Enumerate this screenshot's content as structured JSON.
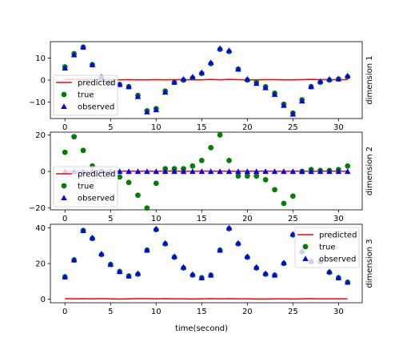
{
  "figure": {
    "xlabel": "time(second)"
  },
  "chart_data": [
    {
      "type": "scatter",
      "side_label": "dimension 1",
      "x": [
        0,
        1,
        2,
        3,
        4,
        5,
        6,
        7,
        8,
        9,
        10,
        11,
        12,
        13,
        14,
        15,
        16,
        17,
        18,
        19,
        20,
        21,
        22,
        23,
        24,
        25,
        26,
        27,
        28,
        29,
        30,
        31
      ],
      "xlim": [
        -1.6,
        32.6
      ],
      "ylim": [
        -17.5,
        17.5
      ],
      "xticks": [
        0,
        5,
        10,
        15,
        20,
        25,
        30
      ],
      "yticks": [
        10,
        0,
        -10
      ],
      "legend_position": "lower-left",
      "series": [
        {
          "name": "predicted",
          "kind": "line",
          "color": "#ff0000",
          "values": [
            0.3,
            0.2,
            0.3,
            0.2,
            0.3,
            0.2,
            0.1,
            0.2,
            0.1,
            0.1,
            0.2,
            0.1,
            0.2,
            0.2,
            0.1,
            0.1,
            0.3,
            0.1,
            0.3,
            0.2,
            0.1,
            0.1,
            0.2,
            0.2,
            0.1,
            0.1,
            0.2,
            0.3,
            0.2,
            0.2,
            0.2,
            0.2
          ]
        },
        {
          "name": "true",
          "kind": "circle",
          "color": "#008000",
          "values": [
            6,
            12,
            15,
            7,
            1,
            -1,
            -2,
            -3,
            -7,
            -14,
            -13,
            -5,
            -1,
            0,
            1,
            3,
            7.5,
            14,
            13,
            5,
            0,
            -1,
            -3,
            -6,
            -11,
            -15,
            -9,
            -3,
            -1,
            0,
            0.5,
            1.5
          ]
        },
        {
          "name": "observed",
          "kind": "triangle",
          "color": "#0000ff",
          "values": [
            5.5,
            11.5,
            15,
            7,
            1.5,
            -1.5,
            -2,
            -3,
            -7.5,
            -14.5,
            -13.5,
            -5.5,
            -1,
            0.5,
            1.5,
            3.5,
            8,
            14.5,
            13.5,
            5,
            0.5,
            -1.5,
            -3.5,
            -6.5,
            -11.5,
            -15.5,
            -9.5,
            -3,
            -0.5,
            0.5,
            0.5,
            2
          ]
        }
      ]
    },
    {
      "type": "scatter",
      "side_label": "dimension 2",
      "x": [
        0,
        1,
        2,
        3,
        4,
        5,
        6,
        7,
        8,
        9,
        10,
        11,
        12,
        13,
        14,
        15,
        16,
        17,
        18,
        19,
        20,
        21,
        22,
        23,
        24,
        25,
        26,
        27,
        28,
        29,
        30,
        31
      ],
      "xlim": [
        -1.6,
        32.6
      ],
      "ylim": [
        -21,
        21.5
      ],
      "xticks": [
        0,
        5,
        10,
        15,
        20,
        25,
        30
      ],
      "yticks": [
        20,
        0,
        -20
      ],
      "legend_position": "lower-left",
      "series": [
        {
          "name": "predicted",
          "kind": "line",
          "color": "#ff0000",
          "values": [
            0.2,
            0.1,
            0.2,
            0.1,
            0.1,
            0.2,
            0.1,
            0.2,
            0.1,
            0.2,
            0.1,
            0.2,
            0.2,
            0.1,
            0.1,
            0.2,
            0.1,
            0.2,
            0.1,
            0.1,
            0.2,
            0.1,
            0.2,
            0.1,
            0.1,
            0.2,
            0.1,
            0.1,
            0.1,
            0.2,
            0.1,
            0.1
          ]
        },
        {
          "name": "true",
          "kind": "circle",
          "color": "#008000",
          "values": [
            10.5,
            19,
            11.5,
            3,
            0,
            -1,
            -3,
            -6,
            -13,
            -20,
            -6.5,
            1.5,
            1.5,
            1.5,
            3,
            6,
            13,
            20,
            6,
            -2.5,
            -2.5,
            -2.5,
            -4.5,
            -10,
            -17.5,
            -13.5,
            0,
            1,
            0.5,
            0.5,
            1,
            3
          ]
        },
        {
          "name": "observed",
          "kind": "triangle",
          "color": "#0000ff",
          "values": [
            0,
            0,
            0,
            0,
            0,
            0,
            0,
            0,
            0,
            0,
            0,
            0,
            0,
            0,
            0,
            0,
            0,
            0,
            0,
            0,
            0,
            0,
            0,
            0,
            0,
            0,
            0,
            0,
            0,
            0,
            0,
            0
          ]
        }
      ]
    },
    {
      "type": "scatter",
      "side_label": "dimension 3",
      "x": [
        0,
        1,
        2,
        3,
        4,
        5,
        6,
        7,
        8,
        9,
        10,
        11,
        12,
        13,
        14,
        15,
        16,
        17,
        18,
        19,
        20,
        21,
        22,
        23,
        24,
        25,
        26,
        27,
        28,
        29,
        30,
        31
      ],
      "xlim": [
        -1.6,
        32.6
      ],
      "ylim": [
        -2,
        42
      ],
      "xticks": [
        0,
        5,
        10,
        15,
        20,
        25,
        30
      ],
      "yticks": [
        40,
        20,
        0
      ],
      "legend_position": "upper-right",
      "series": [
        {
          "name": "predicted",
          "kind": "line",
          "color": "#ff0000",
          "values": [
            0.3,
            0.2,
            0.3,
            0.2,
            0.3,
            0.2,
            0.1,
            0.2,
            0.3,
            0.3,
            0.2,
            0.3,
            0.2,
            0.2,
            0.1,
            0.2,
            0.3,
            0.2,
            0.3,
            0.2,
            0.2,
            0.1,
            0.1,
            0.2,
            0.2,
            0.1,
            0.2,
            0.3,
            0.2,
            0.2,
            0.2,
            0.2
          ]
        },
        {
          "name": "true",
          "kind": "circle",
          "color": "#008000",
          "values": [
            12.5,
            22,
            38.5,
            34,
            25,
            19.5,
            15.5,
            13,
            14,
            27.5,
            39,
            31,
            23.5,
            17.5,
            13.5,
            12,
            13.5,
            27.5,
            39.5,
            31,
            23.5,
            17.5,
            14,
            13.5,
            20,
            36,
            26.5,
            21,
            21,
            15,
            12,
            9.5
          ]
        },
        {
          "name": "observed",
          "kind": "triangle",
          "color": "#0000ff",
          "values": [
            12.5,
            22,
            38.5,
            34.5,
            25.5,
            19.5,
            15.5,
            13,
            14.5,
            27.5,
            39.5,
            31.5,
            24,
            18,
            14,
            12,
            13.5,
            27.5,
            40,
            31.5,
            24,
            18,
            14.5,
            13.5,
            20.5,
            36.5,
            27,
            21.5,
            21.5,
            15.5,
            12,
            9.5
          ]
        }
      ]
    }
  ]
}
